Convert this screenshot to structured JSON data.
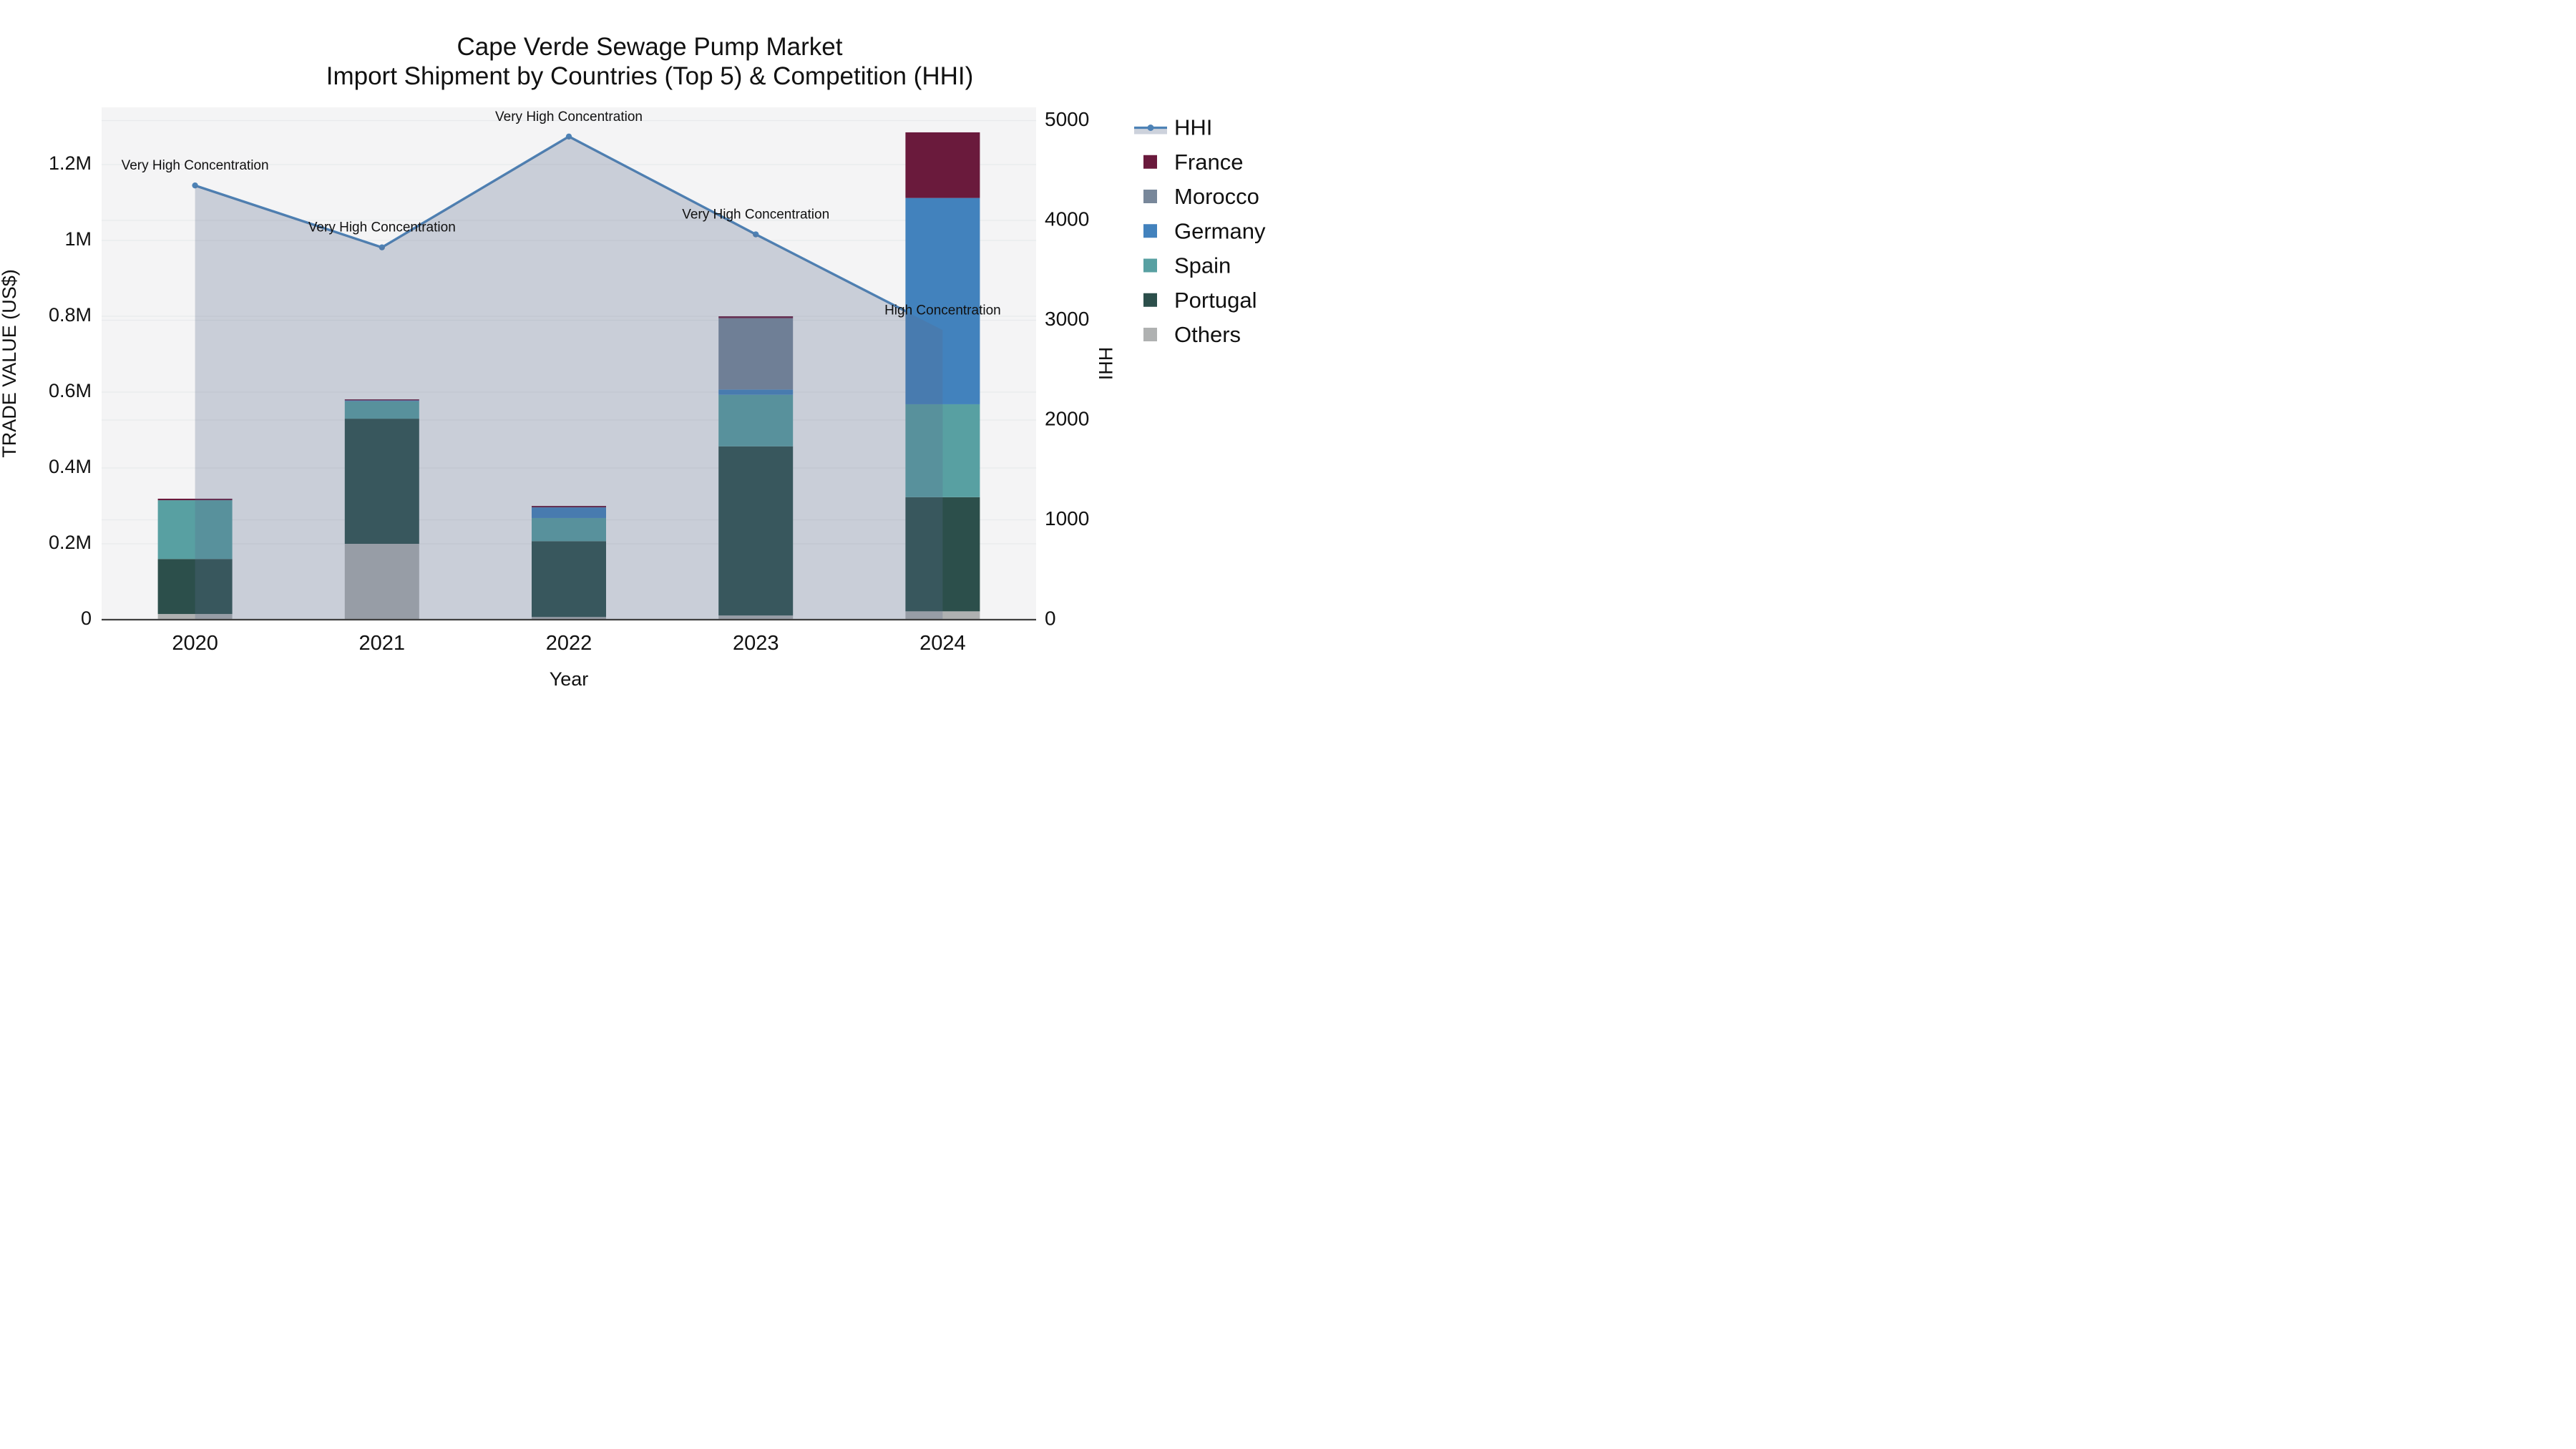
{
  "title": {
    "line1": "Cape Verde Sewage Pump Market",
    "line2": "Import Shipment by Countries (Top 5) & Competition (HHI)"
  },
  "axes": {
    "y_left": {
      "title": "TRADE VALUE (US$)",
      "tick_labels": [
        "0",
        "0.2M",
        "0.4M",
        "0.6M",
        "0.8M",
        "1M",
        "1.2M"
      ],
      "tick_values": [
        0,
        200000,
        400000,
        600000,
        800000,
        1000000,
        1200000
      ],
      "range": [
        0,
        1356000
      ]
    },
    "y_right": {
      "title": "HHI",
      "tick_labels": [
        "0",
        "1000",
        "2000",
        "3000",
        "4000",
        "5000"
      ],
      "tick_values": [
        0,
        1000,
        2000,
        3000,
        4000,
        5000
      ],
      "range": [
        0,
        5150
      ]
    },
    "x": {
      "title": "Year",
      "tick_labels": [
        "2020",
        "2021",
        "2022",
        "2023",
        "2024"
      ]
    }
  },
  "legend": [
    {
      "label": "HHI",
      "type": "line",
      "color": "#4d82b6"
    },
    {
      "label": "France",
      "type": "swatch",
      "color": "#6a1a3c"
    },
    {
      "label": "Morocco",
      "type": "swatch",
      "color": "#78879a"
    },
    {
      "label": "Germany",
      "type": "swatch",
      "color": "#4282bd"
    },
    {
      "label": "Spain",
      "type": "swatch",
      "color": "#58a0a2"
    },
    {
      "label": "Portugal",
      "type": "swatch",
      "color": "#2c4f4b"
    },
    {
      "label": "Others",
      "type": "swatch",
      "color": "#afb1b1"
    }
  ],
  "chart_data": {
    "type": "combo: stacked bar (left axis) + area line (right axis)",
    "categories": [
      2020,
      2021,
      2022,
      2023,
      2024
    ],
    "bar_unit": "US$",
    "bar_series_bottom_to_top": [
      {
        "name": "Others",
        "color": "#afb1b1",
        "values": [
          15000,
          200000,
          7000,
          11000,
          22000
        ]
      },
      {
        "name": "Portugal",
        "color": "#2c4f4b",
        "values": [
          145000,
          330000,
          200000,
          446000,
          301000
        ]
      },
      {
        "name": "Spain",
        "color": "#58a0a2",
        "values": [
          155000,
          46000,
          61000,
          136000,
          245000
        ]
      },
      {
        "name": "Germany",
        "color": "#4282bd",
        "values": [
          0,
          2000,
          28000,
          14000,
          544000
        ]
      },
      {
        "name": "Morocco",
        "color": "#78879a",
        "values": [
          0,
          0,
          0,
          188000,
          0
        ]
      },
      {
        "name": "France",
        "color": "#6a1a3c",
        "values": [
          4000,
          3000,
          4000,
          5000,
          173000
        ]
      }
    ],
    "bar_totals": [
      319000,
      581000,
      300000,
      800000,
      1285000
    ],
    "line_series": {
      "name": "HHI",
      "axis": "right",
      "color": "#4d82b6",
      "area_fill": "rgba(90,108,141,0.28)",
      "values": [
        4350,
        3730,
        4840,
        3860,
        2900
      ]
    },
    "annotations": [
      {
        "category": 2020,
        "text": "Very High Concentration"
      },
      {
        "category": 2021,
        "text": "Very High Concentration"
      },
      {
        "category": 2022,
        "text": "Very High Concentration"
      },
      {
        "category": 2023,
        "text": "Very High Concentration"
      },
      {
        "category": 2024,
        "text": "High Concentration"
      }
    ],
    "layout_hints": {
      "plot_background": "#f4f4f5",
      "gridline_color": "#e8e9ec",
      "axis_line_color": "#3f3f3f",
      "legend_position": "right",
      "grid_on": true
    }
  }
}
